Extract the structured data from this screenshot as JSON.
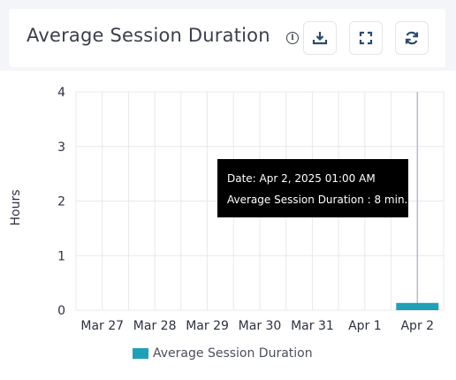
{
  "header": {
    "title": "Average Session Duration",
    "info_icon": "info-icon",
    "buttons": [
      {
        "name": "download-button",
        "icon": "download-icon"
      },
      {
        "name": "fullscreen-button",
        "icon": "fullscreen-icon"
      },
      {
        "name": "refresh-button",
        "icon": "refresh-icon"
      }
    ]
  },
  "tooltip": {
    "date_line": "Date: Apr 2, 2025 01:00 AM",
    "value_line": "Average Session Duration : 8 min."
  },
  "colors": {
    "series": "#20a0b8",
    "grid": "#e6e8ec",
    "crosshair": "#b8bcc4"
  },
  "chart_data": {
    "type": "bar",
    "categories": [
      "Mar 27",
      "Mar 28",
      "Mar 29",
      "Mar 30",
      "Mar 31",
      "Apr 1",
      "Apr 2"
    ],
    "series": [
      {
        "name": "Average Session Duration",
        "values": [
          0,
          0,
          0,
          0,
          0,
          0,
          0.133
        ]
      }
    ],
    "ylabel": "Hours",
    "xlabel": "",
    "ylim": [
      0,
      4
    ],
    "yticks": [
      0,
      1,
      2,
      3,
      4
    ],
    "grid": true,
    "legend": "bottom-center",
    "highlighted_category": "Apr 2"
  }
}
